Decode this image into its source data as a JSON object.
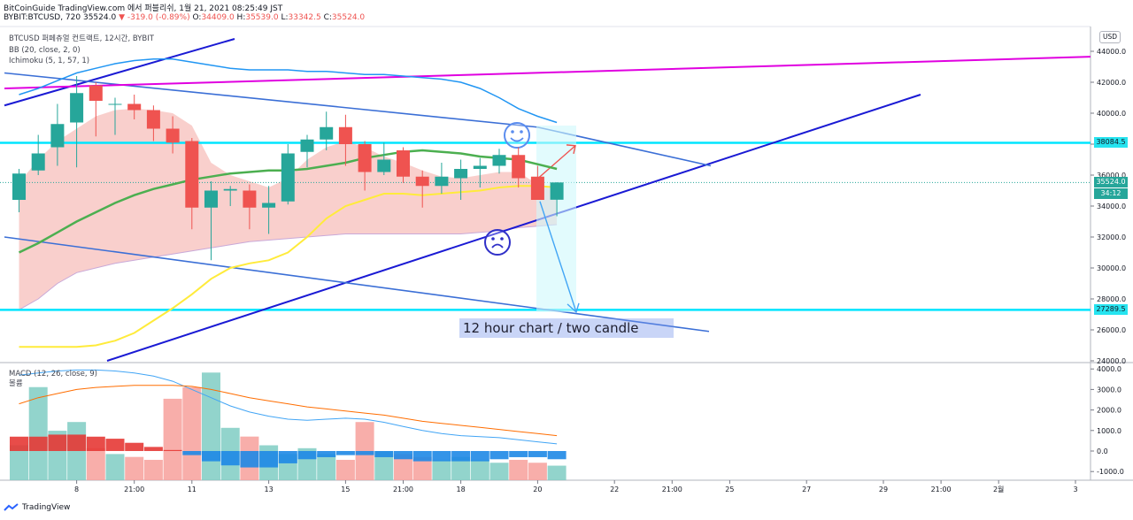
{
  "header": {
    "source": "BitCoinGuide TradingView.com 에서 퍼블리쉬, 1월 21, 2021 08:25:49 JST",
    "symbol": "BYBIT:BTCUSD, 720",
    "last": "35524.0",
    "change": "▼ -319.0 (-0.89%)",
    "o_label": "O:",
    "o_value": "34409.0",
    "h_label": "H:",
    "h_value": "35539.0",
    "l_label": "L:",
    "l_value": "33342.5",
    "c_label": "C:",
    "c_value": "35524.0"
  },
  "legend": {
    "title": "BTCUSD 퍼페츄얼 컨트랙트, 12시간, BYBIT",
    "bb": "BB (20, close, 2, 0)",
    "ichimoku": "Ichimoku (5, 1, 57, 1)",
    "macd": "MACD (12, 26, close, 9)",
    "volume": "볼륨"
  },
  "annotation": "12 hour chart /  two candle",
  "currency_button": "USD",
  "price_tags": {
    "level_high": "38084.5",
    "last_price": "35524.0",
    "countdown": "34:12",
    "level_low": "27289.5"
  },
  "footer": {
    "brand": "TradingView"
  },
  "colors": {
    "up": "#26a69a",
    "down": "#ef5350",
    "bb_basis": "#4caf50",
    "bb_upper": "#2196f3",
    "ichimoku_line": "#ffeb3b",
    "cloud": "#f4a7a3",
    "level": "#00e5ff",
    "trend": "#1a1ad4",
    "channel": "#3b6fd6",
    "magenta": "#e000e0"
  },
  "chart_data": {
    "type": "candlestick",
    "price_axis": [
      44000,
      42000,
      40000,
      38000,
      36000,
      34000,
      32000,
      30000,
      28000,
      26000,
      24000
    ],
    "price_axis_labels": [
      "44000.0",
      "42000.0",
      "40000.0",
      "38000.0",
      "36000.0",
      "34000.0",
      "32000.0",
      "30000.0",
      "28000.0",
      "26000.0",
      "24000.0"
    ],
    "time_axis_labels": [
      "8",
      "21:00",
      "11",
      "13",
      "15",
      "21:00",
      "18",
      "20",
      "22",
      "21:00",
      "25",
      "27",
      "29",
      "21:00",
      "2월",
      "3"
    ],
    "time_axis_index": [
      3,
      6,
      9,
      13,
      17,
      20,
      23,
      27,
      31,
      34,
      37,
      41,
      45,
      48,
      51,
      55
    ],
    "candles": [
      {
        "o": 34400,
        "h": 36400,
        "l": 33600,
        "c": 36100
      },
      {
        "o": 36300,
        "h": 38600,
        "l": 36000,
        "c": 37400
      },
      {
        "o": 37800,
        "h": 40600,
        "l": 36600,
        "c": 39300
      },
      {
        "o": 39400,
        "h": 42400,
        "l": 36500,
        "c": 41300
      },
      {
        "o": 41800,
        "h": 42000,
        "l": 38500,
        "c": 40800
      },
      {
        "o": 40600,
        "h": 41000,
        "l": 38600,
        "c": 40600
      },
      {
        "o": 40600,
        "h": 41200,
        "l": 39600,
        "c": 40200
      },
      {
        "o": 40200,
        "h": 40500,
        "l": 38200,
        "c": 39000
      },
      {
        "o": 39000,
        "h": 39800,
        "l": 37400,
        "c": 38100
      },
      {
        "o": 38200,
        "h": 38400,
        "l": 32500,
        "c": 33900
      },
      {
        "o": 33900,
        "h": 35600,
        "l": 30500,
        "c": 35000
      },
      {
        "o": 35000,
        "h": 35300,
        "l": 34000,
        "c": 35100
      },
      {
        "o": 35000,
        "h": 35400,
        "l": 32500,
        "c": 33900
      },
      {
        "o": 33900,
        "h": 35300,
        "l": 32200,
        "c": 34200
      },
      {
        "o": 34300,
        "h": 38000,
        "l": 34100,
        "c": 37400
      },
      {
        "o": 37500,
        "h": 38600,
        "l": 36500,
        "c": 38300
      },
      {
        "o": 38300,
        "h": 40100,
        "l": 37600,
        "c": 39100
      },
      {
        "o": 39100,
        "h": 39900,
        "l": 36600,
        "c": 38000
      },
      {
        "o": 38000,
        "h": 38200,
        "l": 35000,
        "c": 36200
      },
      {
        "o": 36200,
        "h": 38100,
        "l": 36000,
        "c": 37000
      },
      {
        "o": 37600,
        "h": 37800,
        "l": 35500,
        "c": 35900
      },
      {
        "o": 35900,
        "h": 36300,
        "l": 33900,
        "c": 35300
      },
      {
        "o": 35300,
        "h": 36800,
        "l": 34800,
        "c": 35900
      },
      {
        "o": 35800,
        "h": 37000,
        "l": 34400,
        "c": 36400
      },
      {
        "o": 36400,
        "h": 37100,
        "l": 35200,
        "c": 36600
      },
      {
        "o": 36600,
        "h": 37700,
        "l": 36100,
        "c": 37300
      },
      {
        "o": 37300,
        "h": 37800,
        "l": 35200,
        "c": 35800
      },
      {
        "o": 35900,
        "h": 36600,
        "l": 34400,
        "c": 34400
      },
      {
        "o": 34409,
        "h": 35539,
        "l": 33342.5,
        "c": 35524
      }
    ],
    "bb_basis": [
      31000,
      31600,
      32300,
      33000,
      33600,
      34200,
      34700,
      35100,
      35400,
      35700,
      35900,
      36100,
      36200,
      36300,
      36300,
      36400,
      36600,
      36800,
      37100,
      37300,
      37500,
      37600,
      37500,
      37400,
      37200,
      37100,
      37000,
      36700,
      36400
    ],
    "bb_upper": [
      41200,
      41600,
      42100,
      42600,
      42900,
      43200,
      43400,
      43500,
      43500,
      43300,
      43100,
      42900,
      42800,
      42800,
      42800,
      42700,
      42700,
      42600,
      42500,
      42500,
      42400,
      42300,
      42200,
      42000,
      41600,
      41000,
      40300,
      39800,
      39400
    ],
    "ichimoku_line": [
      24900,
      24900,
      24900,
      24900,
      25000,
      25300,
      25800,
      26600,
      27400,
      28300,
      29300,
      30000,
      30300,
      30500,
      31000,
      32000,
      33200,
      34000,
      34400,
      34800,
      34800,
      34700,
      34800,
      34900,
      35000,
      35200,
      35300,
      35300,
      35200
    ],
    "cloud_top": [
      35500,
      37000,
      38200,
      39000,
      39800,
      40200,
      40300,
      40200,
      40000,
      39200,
      36800,
      36000,
      35600,
      35200,
      35800,
      37000,
      37800,
      38200,
      37800,
      37200,
      36800,
      36300,
      35900,
      35800,
      36000,
      36200,
      36200,
      35400,
      35000
    ],
    "cloud_bottom": [
      27300,
      28000,
      29000,
      29700,
      30000,
      30300,
      30500,
      30700,
      30900,
      31100,
      31300,
      31500,
      31700,
      31800,
      31900,
      32000,
      32100,
      32200,
      32200,
      32200,
      32200,
      32200,
      32200,
      32200,
      32300,
      32400,
      32600,
      32700,
      32800
    ],
    "levels": [
      38084.5,
      27289.5
    ],
    "macd_axis": [
      4000,
      3000,
      2000,
      1000,
      0,
      -1000
    ],
    "macd_axis_labels": [
      "4000.0",
      "3000.0",
      "2000.0",
      "1000.0",
      "0.0",
      "-1000.0"
    ],
    "macd_line": [
      3700,
      3800,
      3900,
      3950,
      3950,
      3900,
      3800,
      3650,
      3400,
      3000,
      2600,
      2200,
      1900,
      1700,
      1550,
      1500,
      1550,
      1600,
      1550,
      1400,
      1200,
      1000,
      850,
      750,
      700,
      650,
      550,
      450,
      350
    ],
    "signal_line": [
      2300,
      2600,
      2800,
      3000,
      3100,
      3150,
      3200,
      3200,
      3200,
      3150,
      3000,
      2800,
      2600,
      2450,
      2300,
      2150,
      2050,
      1950,
      1850,
      1750,
      1600,
      1450,
      1350,
      1250,
      1150,
      1050,
      950,
      850,
      750
    ],
    "macd_hist": [
      700,
      700,
      800,
      800,
      700,
      600,
      400,
      200,
      50,
      -200,
      -500,
      -700,
      -800,
      -800,
      -600,
      -400,
      -300,
      -200,
      -200,
      -300,
      -400,
      -500,
      -500,
      -500,
      -500,
      -400,
      -300,
      -300,
      -400
    ],
    "volume": [
      1200,
      3200,
      1700,
      2000,
      1100,
      900,
      800,
      700,
      2800,
      3200,
      3700,
      1800,
      1500,
      1200,
      900,
      1100,
      900,
      700,
      2000,
      1000,
      900,
      800,
      700,
      800,
      700,
      600,
      700,
      600,
      500
    ]
  }
}
